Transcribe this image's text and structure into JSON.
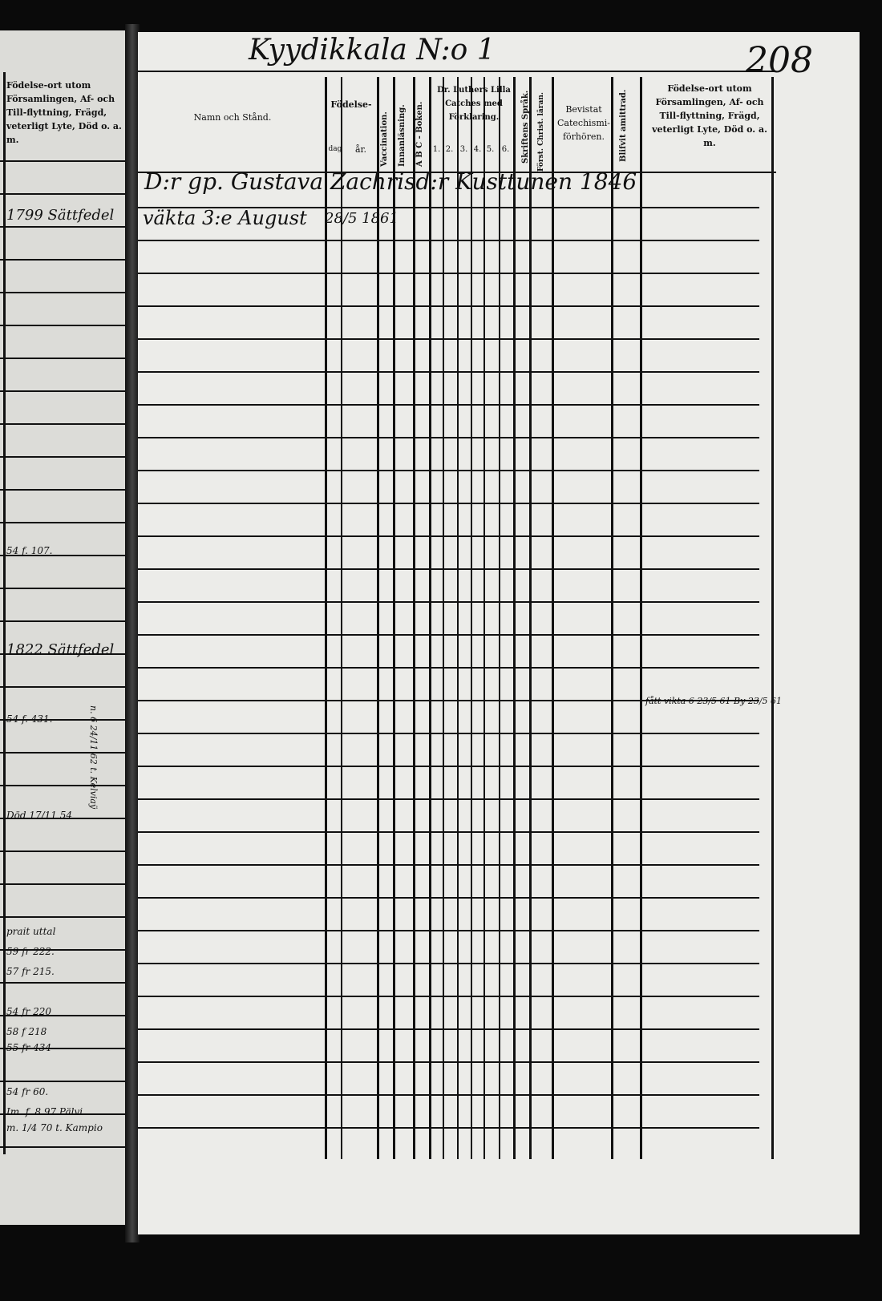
{
  "page_header": {
    "parish_title": "Kyydikkala N:o 1",
    "page_number": "208"
  },
  "left_page": {
    "column_header": "Födelse-ort utom Församlingen, Af- och Tillflyttning, Frägd, veterligt Lyte, Död o. a. m.",
    "notes": [
      "1799 Sättfedel",
      "54 f. 107.",
      "1822 Sättfedel",
      "54 f. 431.",
      "Död 17/11 54",
      "n. 6 24/11 62 t. Kelviaÿ",
      "prait uttal",
      "59 fr 222.",
      "57 fr 215.",
      "54 fr 220",
      "58 f 218",
      "55 fr 434",
      "54 fr 60.",
      "Im. f. 8 97 Pälvi",
      "m. 1/4 70 t. Kampio"
    ]
  },
  "table_headers": {
    "name": "Namn och Stånd.",
    "birth": "Födelse-",
    "birth_day": "dag",
    "birth_year": "år.",
    "vaccination": "Vaccination.",
    "innanlasning": "Innanläsning.",
    "abc": "A B C - Boken.",
    "catechism": "Dr. Luthers Lilla Catches med Förklaring.",
    "catechism_parts": [
      "1.",
      "2.",
      "3.",
      "4.",
      "5.",
      "6."
    ],
    "skriftens": "Skriftens Språk.",
    "forst_christ": "Först. Christ. läran.",
    "bevistat": "Bevistat Catechismi-förhören.",
    "blifvit": "Blifvit amittrad.",
    "remarks": "Födelse-ort utom Församlingen, Af- och Till-flyttning, Frägd, veterligt Lyte, Död o. a. m."
  },
  "entries": [
    {
      "line1": "D:r gp. Gustava Zachrisd:r Kusttunen 1846",
      "line2": "väktа 3:e August",
      "birth": "28/5 1861"
    }
  ],
  "remark_note": "fått vikta 6 23/5 61   By 23/5 61"
}
